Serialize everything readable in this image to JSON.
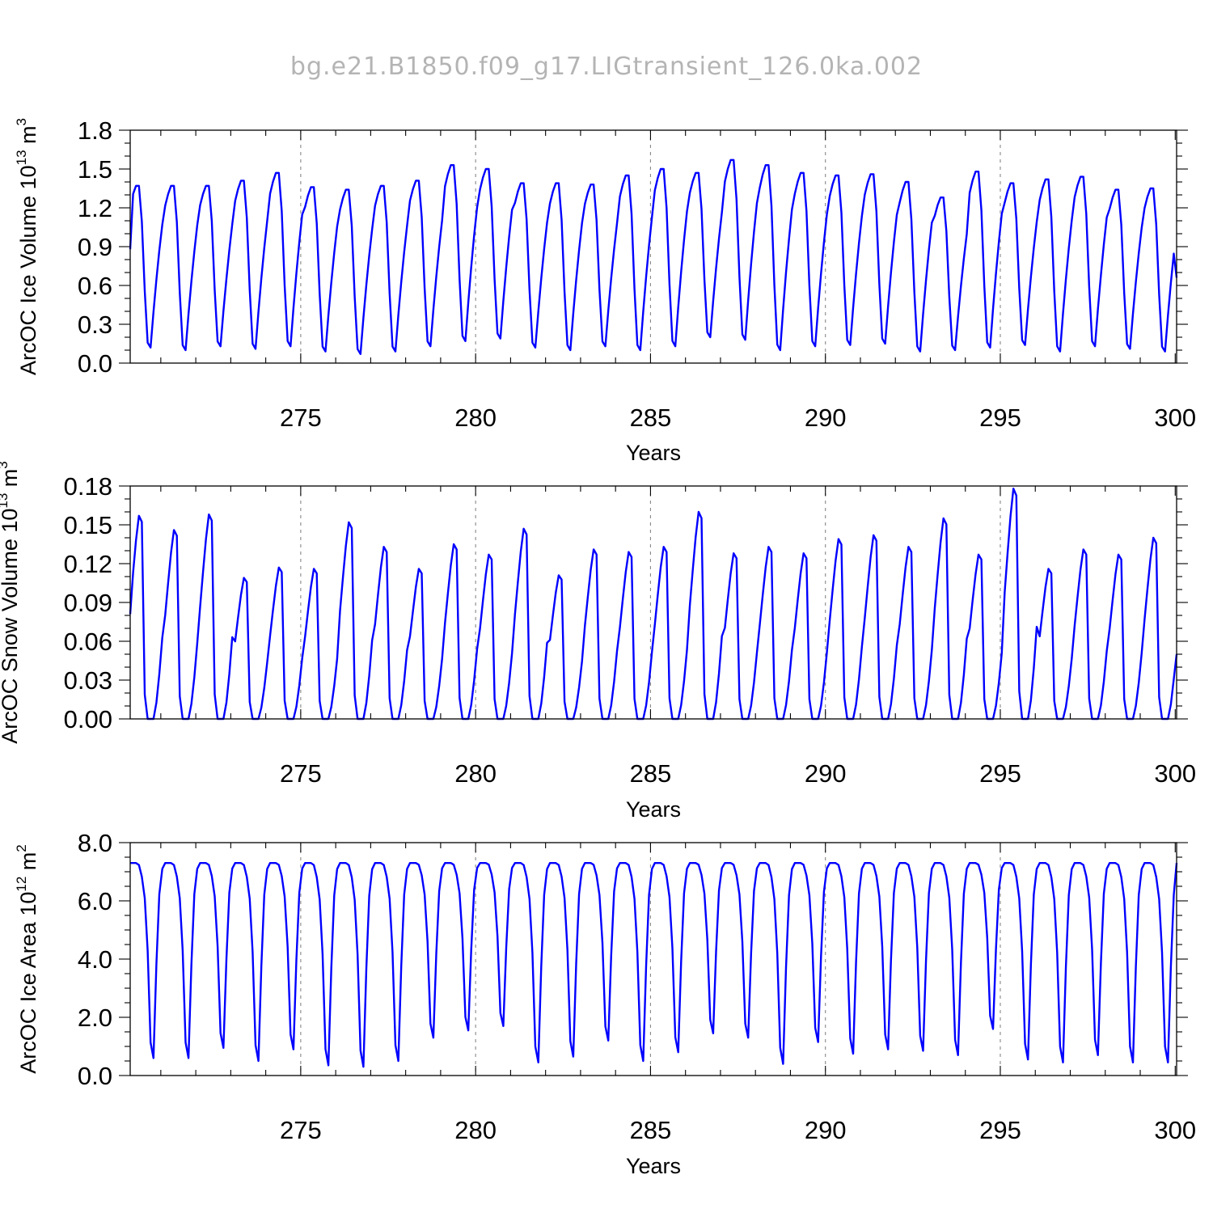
{
  "title": "bg.e21.B1850.f09_g17.LIGtransient_126.0ka.002",
  "colors": {
    "series": "#0000ff",
    "title": "#b4b4b4",
    "grid": "#888888"
  },
  "chart_data": [
    {
      "type": "line",
      "ylabel_main": "ArcOC Ice Volume 10",
      "ylabel_exp": "13",
      "ylabel_unit": " m",
      "ylabel_unit_exp": "3",
      "xlabel": "Years",
      "xlim": [
        270.125,
        300.04
      ],
      "ylim": [
        0,
        1.8
      ],
      "xticks": [
        "275",
        "280",
        "285",
        "290",
        "295",
        "300"
      ],
      "yticks": [
        "0.0",
        "0.3",
        "0.6",
        "0.9",
        "1.2",
        "1.5",
        "1.8"
      ],
      "grid": "vertical dashed lines at major x ticks",
      "season": {
        "max": 1.36,
        "min": 0.13
      },
      "annual_peaks": [
        1.37,
        1.37,
        1.37,
        1.41,
        1.47,
        1.36,
        1.34,
        1.37,
        1.41,
        1.53,
        1.5,
        1.39,
        1.39,
        1.38,
        1.45,
        1.5,
        1.47,
        1.57,
        1.53,
        1.47,
        1.45,
        1.46,
        1.4,
        1.28,
        1.48,
        1.39,
        1.42,
        1.44,
        1.34,
        1.35
      ],
      "annual_minima": [
        0.12,
        0.1,
        0.13,
        0.11,
        0.13,
        0.09,
        0.07,
        0.09,
        0.13,
        0.17,
        0.19,
        0.12,
        0.1,
        0.13,
        0.1,
        0.13,
        0.2,
        0.18,
        0.1,
        0.13,
        0.14,
        0.15,
        0.09,
        0.1,
        0.12,
        0.14,
        0.09,
        0.13,
        0.11,
        0.09
      ],
      "first_value": 0.88,
      "last_value": 0.66
    },
    {
      "type": "line",
      "ylabel_main": "ArcOC Snow Volume 10",
      "ylabel_exp": "13",
      "ylabel_unit": " m",
      "ylabel_unit_exp": "3",
      "xlabel": "Years",
      "xlim": [
        270.125,
        300.04
      ],
      "ylim": [
        0,
        0.18
      ],
      "xticks": [
        "275",
        "280",
        "285",
        "290",
        "295",
        "300"
      ],
      "yticks": [
        "0.00",
        "0.03",
        "0.06",
        "0.09",
        "0.12",
        "0.15",
        "0.18"
      ],
      "grid": "vertical dashed lines at major x ticks",
      "season": {
        "max": 0.125,
        "min": 0.0
      },
      "annual_peaks": [
        0.157,
        0.146,
        0.158,
        0.109,
        0.117,
        0.116,
        0.152,
        0.133,
        0.116,
        0.135,
        0.127,
        0.147,
        0.111,
        0.131,
        0.129,
        0.133,
        0.16,
        0.128,
        0.133,
        0.128,
        0.139,
        0.142,
        0.133,
        0.155,
        0.127,
        0.178,
        0.116,
        0.131,
        0.127,
        0.14
      ],
      "annual_minima": [
        0.0,
        0.0,
        0.0,
        0.0,
        0.0,
        0.0,
        0.0,
        0.0,
        0.0,
        0.0,
        0.0,
        0.0,
        0.0,
        0.0,
        0.0,
        0.0,
        0.0,
        0.0,
        0.0,
        0.0,
        0.0,
        0.0,
        0.0,
        0.0,
        0.0,
        0.0,
        0.0,
        0.0,
        0.0,
        0.0
      ],
      "first_value": 0.081,
      "last_value": 0.05
    },
    {
      "type": "line",
      "ylabel_main": "ArcOC Ice Area 10",
      "ylabel_exp": "12",
      "ylabel_unit": " m",
      "ylabel_unit_exp": "2",
      "xlabel": "Years",
      "xlim": [
        270.125,
        300.04
      ],
      "ylim": [
        0,
        8
      ],
      "xticks": [
        "275",
        "280",
        "285",
        "290",
        "295",
        "300"
      ],
      "yticks": [
        "0.0",
        "2.0",
        "4.0",
        "6.0",
        "8.0"
      ],
      "grid": "vertical dashed lines at major x ticks",
      "season": {
        "max": 7.3,
        "min": 0.6
      },
      "annual_peaks": [
        7.3,
        7.3,
        7.3,
        7.3,
        7.3,
        7.3,
        7.3,
        7.3,
        7.3,
        7.3,
        7.3,
        7.3,
        7.3,
        7.3,
        7.3,
        7.3,
        7.3,
        7.3,
        7.3,
        7.3,
        7.3,
        7.3,
        7.3,
        7.3,
        7.3,
        7.3,
        7.3,
        7.3,
        7.3,
        7.3
      ],
      "annual_minima": [
        0.6,
        0.6,
        0.95,
        0.5,
        0.9,
        0.35,
        0.3,
        0.5,
        1.3,
        1.55,
        1.7,
        0.45,
        0.65,
        1.2,
        0.5,
        0.8,
        1.45,
        1.3,
        0.4,
        1.15,
        0.75,
        0.9,
        0.85,
        0.7,
        1.6,
        0.55,
        0.45,
        0.7,
        0.45,
        0.45
      ],
      "first_value": 7.3,
      "last_value": 7.3
    }
  ]
}
